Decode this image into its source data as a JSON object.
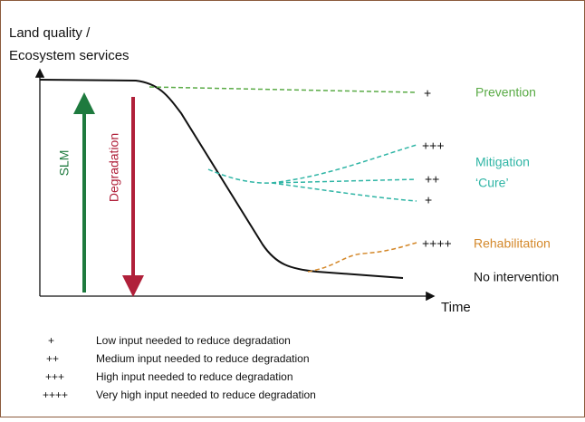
{
  "axes": {
    "y_label": [
      "Land quality /",
      "Ecosystem services"
    ],
    "x_label": "Time"
  },
  "arrows": [
    {
      "label": "SLM"
    },
    {
      "label": "Degradation"
    }
  ],
  "curves": {
    "prevention": {
      "labels": [
        "Prevention"
      ],
      "symbols": [
        "+"
      ]
    },
    "mitigation": {
      "labels": [
        "Mitigation",
        "‘Cure’"
      ],
      "symbols": [
        "+++",
        "++",
        "+"
      ]
    },
    "rehabilitation": {
      "labels": [
        "Rehabilitation"
      ],
      "symbols": [
        "++++"
      ]
    },
    "no_intervention": {
      "labels": [
        "No intervention"
      ]
    }
  },
  "legend": [
    {
      "symbol": "+",
      "text": "Low input needed to reduce degradation"
    },
    {
      "symbol": "++",
      "text": "Medium input needed to reduce degradation"
    },
    {
      "symbol": "+++",
      "text": "High input needed to reduce degradation"
    },
    {
      "symbol": "++++",
      "text": "Very high input needed to reduce degradation"
    }
  ]
}
